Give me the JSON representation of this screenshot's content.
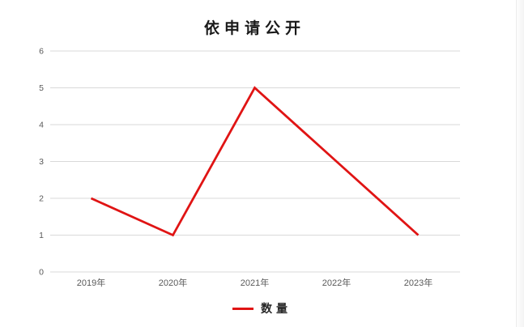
{
  "chart": {
    "legend": {
      "label": "数量",
      "swatch_color": "#e01414"
    }
  },
  "chart_data": {
    "type": "line",
    "title": "依申请公开",
    "categories": [
      "2019年",
      "2020年",
      "2021年",
      "2022年",
      "2023年"
    ],
    "series": [
      {
        "name": "数量",
        "values": [
          2,
          1,
          5,
          3,
          1
        ],
        "color": "#e01414",
        "line_width": 2.8
      }
    ],
    "xlabel": "",
    "ylabel": "",
    "ylim": [
      0,
      6
    ],
    "yticks": [
      0,
      1,
      2,
      3,
      4,
      5,
      6
    ],
    "grid": true,
    "legend_position": "bottom",
    "colors": {
      "gridline": "#d9d9d9",
      "tick_label": "#595959",
      "background": "#ffffff"
    }
  }
}
